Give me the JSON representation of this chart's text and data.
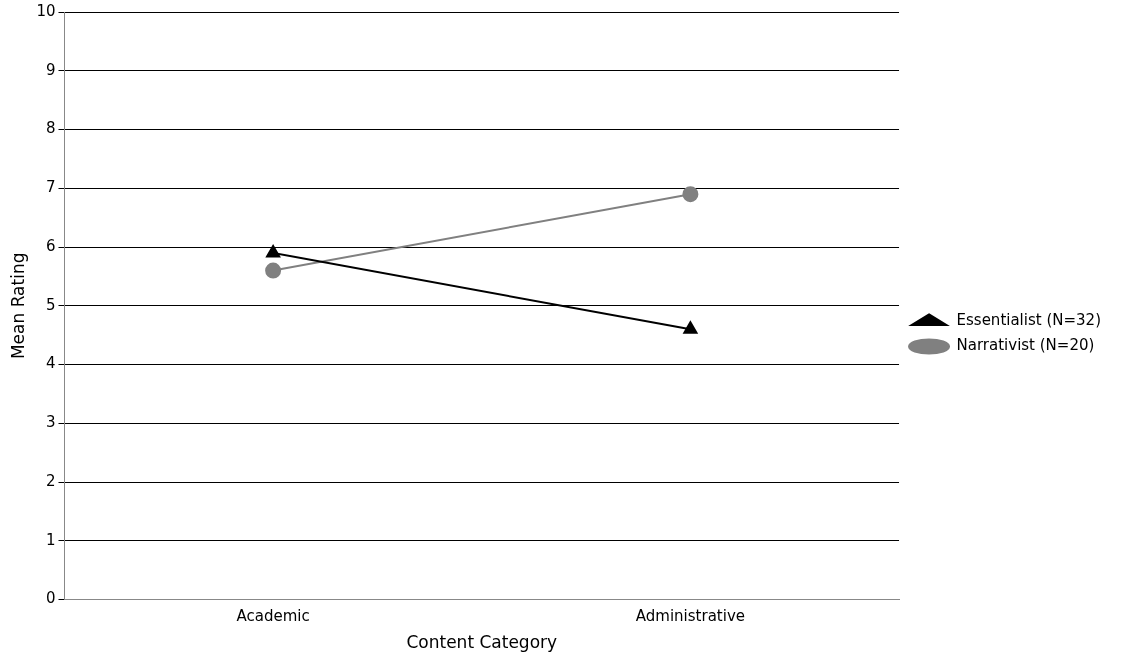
{
  "chart_data": {
    "type": "line",
    "xlabel": "Content Category",
    "ylabel": "Mean Rating",
    "categories": [
      "Academic",
      "Administrative"
    ],
    "series": [
      {
        "name": "Essentialist (N=32)",
        "color": "#000000",
        "marker": "triangle",
        "values": [
          5.9,
          4.6
        ]
      },
      {
        "name": "Narrativist (N=20)",
        "color": "#808080",
        "marker": "circle",
        "values": [
          5.6,
          6.9
        ]
      }
    ],
    "ylim": [
      0,
      10
    ],
    "yticks": [
      0,
      1,
      2,
      3,
      4,
      5,
      6,
      7,
      8,
      9,
      10
    ],
    "grid": "y",
    "legend": "right",
    "line_style": "solid"
  }
}
